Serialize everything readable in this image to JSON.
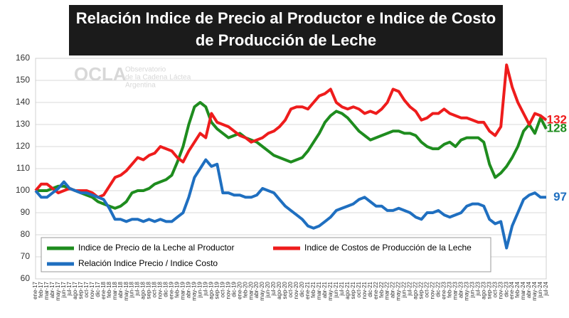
{
  "chart_data": {
    "type": "line",
    "title": [
      "Relación Indice de Precio al Productor e Indice de Costo",
      "de Producción de Leche"
    ],
    "watermark": [
      "OCLA",
      "Observatorio",
      "de la Cadena Láctea",
      "Argentina"
    ],
    "categories": [
      "ene-17",
      "feb-17",
      "mar-17",
      "abr-17",
      "may-17",
      "jun-17",
      "jul-17",
      "ago-17",
      "sep-17",
      "oct-17",
      "nov-17",
      "dic-17",
      "ene-18",
      "feb-18",
      "mar-18",
      "abr-18",
      "may-18",
      "jun-18",
      "jul-18",
      "ago-18",
      "sep-18",
      "oct-18",
      "nov-18",
      "dic-18",
      "ene-19",
      "feb-19",
      "mar-19",
      "abr-19",
      "may-19",
      "jun-19",
      "jul-19",
      "ago-19",
      "sep-19",
      "oct-19",
      "nov-19",
      "dic-19",
      "ene-20",
      "feb-20",
      "mar-20",
      "abr-20",
      "may-20",
      "jun-20",
      "jul-20",
      "ago-20",
      "sep-20",
      "oct-20",
      "nov-20",
      "dic-20",
      "ene-21",
      "feb-21",
      "mar-21",
      "abr-21",
      "may-21",
      "jun-21",
      "jul-21",
      "ago-21",
      "sep-21",
      "oct-21",
      "nov-21",
      "dic-21",
      "ene-22",
      "feb-22",
      "mar-22",
      "abr-22",
      "may-22",
      "jun-22",
      "jul-22",
      "ago-22",
      "sep-22",
      "oct-22",
      "nov-22",
      "dic-22",
      "ene-23",
      "feb-23",
      "mar-23",
      "abr-23",
      "may-23",
      "jun-23",
      "jul-23",
      "ago-23",
      "sep-23",
      "oct-23",
      "nov-23",
      "dic-23",
      "ene-24",
      "feb-24",
      "mar-24",
      "abr-24",
      "may-24",
      "jun-24",
      "jul-24"
    ],
    "series": [
      {
        "name": "Indice de Precio de la Leche al Productor",
        "color": "#1e8c1e",
        "values": [
          100,
          100,
          100,
          101,
          102,
          102,
          101,
          100,
          99,
          98,
          97,
          95,
          94,
          93,
          92,
          93,
          95,
          99,
          100,
          100,
          101,
          103,
          104,
          105,
          107,
          113,
          120,
          130,
          138,
          140,
          138,
          131,
          128,
          126,
          124,
          125,
          126,
          124,
          123,
          122,
          120,
          118,
          116,
          115,
          114,
          113,
          114,
          115,
          118,
          122,
          126,
          131,
          134,
          136,
          135,
          133,
          130,
          127,
          125,
          123,
          124,
          125,
          126,
          127,
          127,
          126,
          126,
          125,
          122,
          120,
          119,
          119,
          121,
          122,
          120,
          123,
          124,
          124,
          124,
          122,
          112,
          106,
          108,
          111,
          115,
          120,
          127,
          130,
          126,
          133,
          128
        ]
      },
      {
        "name": "Indice de Costos de Producción de la Leche",
        "color": "#ee1c1c",
        "values": [
          100,
          103,
          103,
          101,
          99,
          100,
          101,
          100,
          100,
          100,
          99,
          97,
          98,
          102,
          106,
          107,
          109,
          112,
          115,
          114,
          116,
          117,
          120,
          119,
          118,
          115,
          113,
          118,
          122,
          126,
          124,
          135,
          131,
          130,
          129,
          127,
          125,
          124,
          122,
          123,
          124,
          126,
          127,
          129,
          132,
          137,
          138,
          138,
          137,
          140,
          143,
          144,
          146,
          140,
          138,
          137,
          138,
          137,
          135,
          136,
          135,
          137,
          140,
          146,
          145,
          141,
          138,
          136,
          132,
          133,
          135,
          135,
          137,
          135,
          134,
          133,
          133,
          132,
          131,
          131,
          127,
          125,
          129,
          157,
          147,
          140,
          135,
          130,
          135,
          134,
          132
        ]
      },
      {
        "name": "Relación Indice Precio / Indice Costo",
        "color": "#1f6fc0",
        "values": [
          100,
          97,
          97,
          99,
          101,
          104,
          101,
          100,
          99,
          99,
          98,
          97,
          96,
          92,
          87,
          87,
          86,
          87,
          87,
          86,
          87,
          86,
          87,
          86,
          86,
          88,
          90,
          97,
          106,
          110,
          114,
          111,
          112,
          99,
          99,
          98,
          98,
          97,
          97,
          98,
          101,
          100,
          99,
          96,
          93,
          91,
          89,
          87,
          84,
          83,
          84,
          86,
          88,
          91,
          92,
          93,
          94,
          96,
          97,
          95,
          93,
          93,
          91,
          91,
          92,
          91,
          90,
          88,
          87,
          90,
          90,
          91,
          89,
          88,
          89,
          90,
          93,
          94,
          94,
          93,
          87,
          85,
          86,
          74,
          84,
          90,
          96,
          98,
          99,
          97,
          97
        ]
      }
    ],
    "annotations": [
      {
        "text": "132",
        "color": "#ee1c1c",
        "value": 132
      },
      {
        "text": "128",
        "color": "#1e8c1e",
        "value": 128
      },
      {
        "text": "97",
        "color": "#1f6fc0",
        "value": 97
      }
    ],
    "ylim": [
      60,
      160
    ],
    "yticks": [
      60,
      70,
      80,
      90,
      100,
      110,
      120,
      130,
      140,
      150,
      160
    ],
    "grid": true
  }
}
